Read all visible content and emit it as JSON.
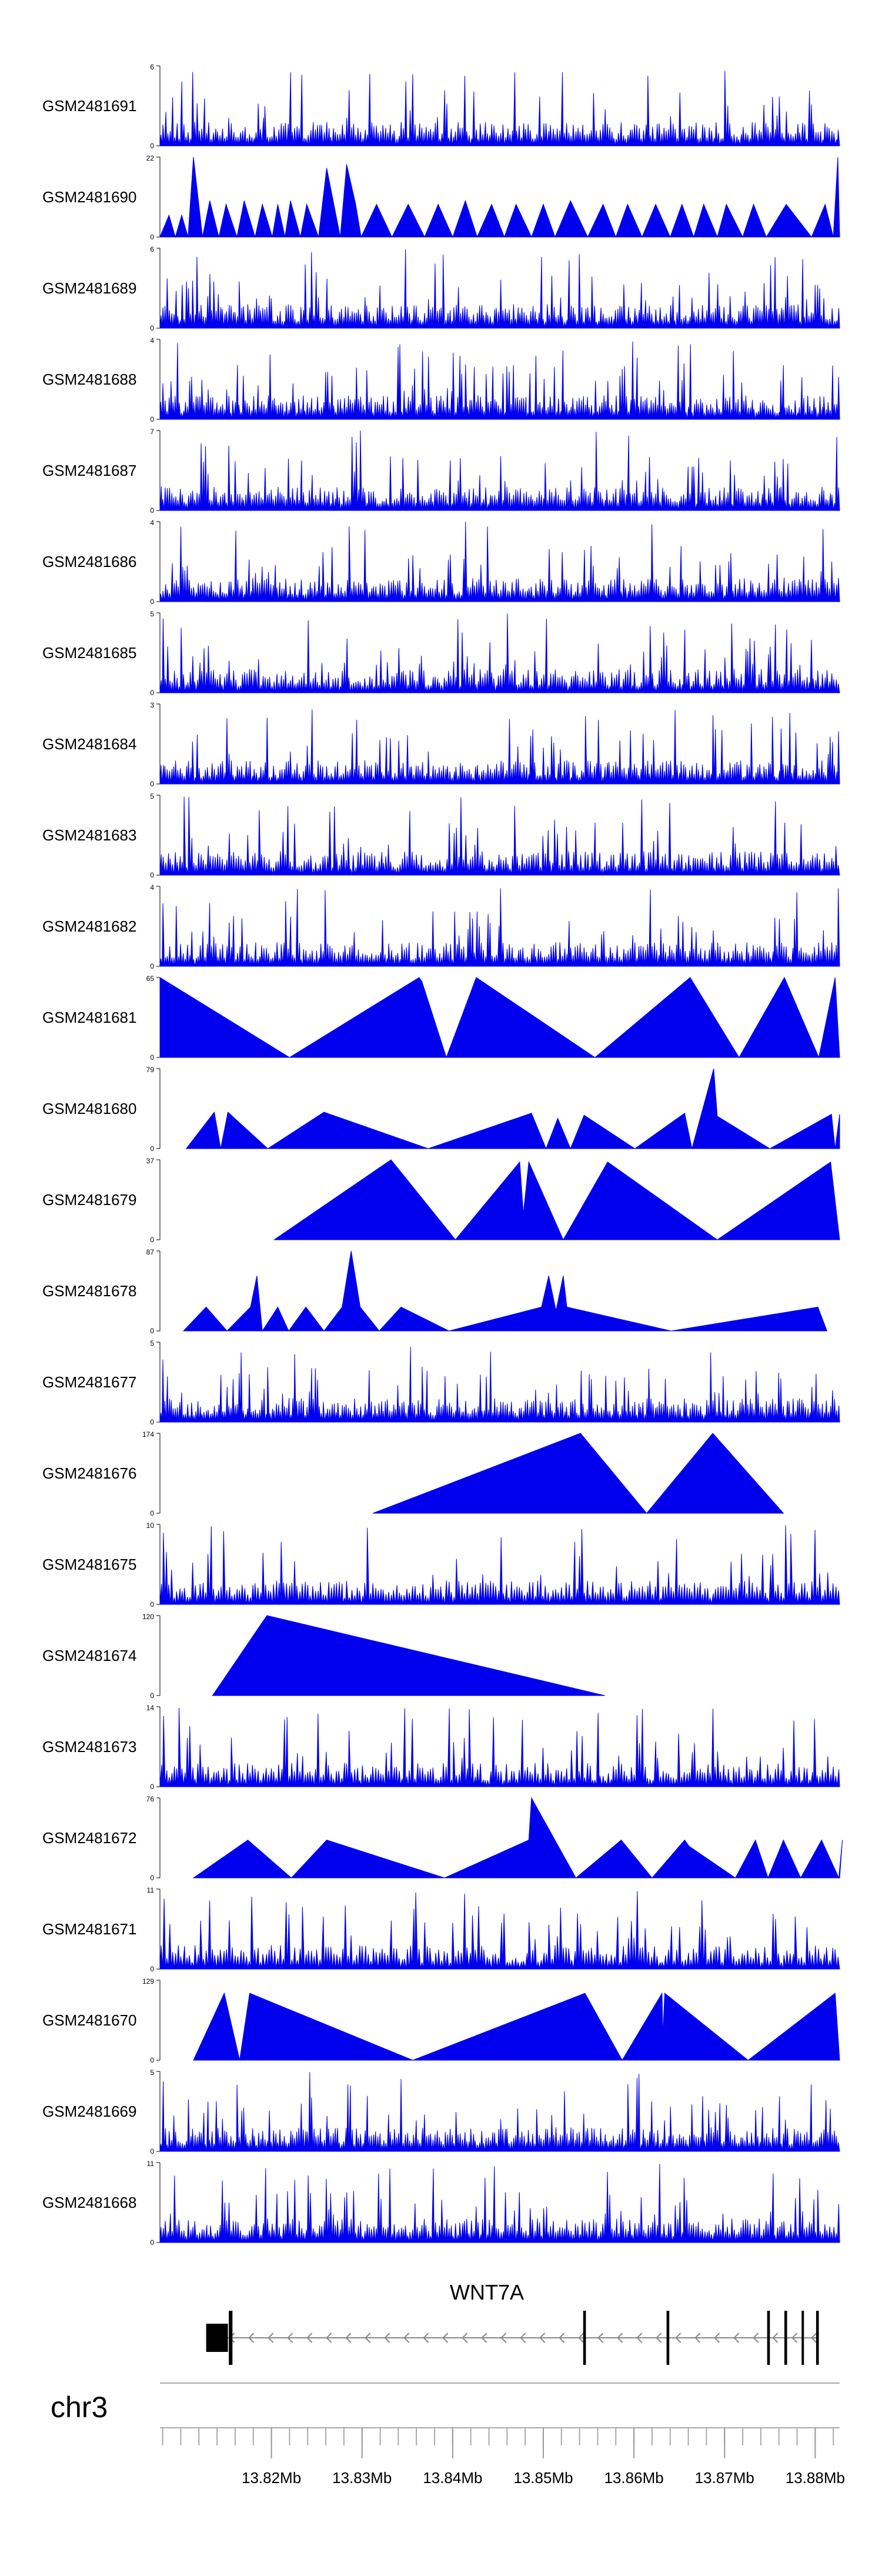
{
  "chart_data": {
    "type": "area",
    "title": "",
    "chromosome": "chr3",
    "genome_range_mb": [
      13.8077,
      13.8827
    ],
    "track_color": "#0000ee",
    "x_axis_ticks": [
      "13.82Mb",
      "13.83Mb",
      "13.84Mb",
      "13.85Mb",
      "13.86Mb",
      "13.87Mb",
      "13.88Mb"
    ],
    "x_axis_tick_values_mb": [
      13.82,
      13.83,
      13.84,
      13.85,
      13.86,
      13.87,
      13.88
    ],
    "gene": {
      "name": "WNT7A",
      "strand": "-",
      "start_mb": 13.8128,
      "end_mb": 13.8804,
      "exons_mb": [
        [
          13.8128,
          13.8152
        ],
        [
          13.8153,
          13.8157
        ],
        [
          13.8544,
          13.8547
        ],
        [
          13.8636,
          13.8639
        ],
        [
          13.8747,
          13.875
        ],
        [
          13.8766,
          13.8769
        ],
        [
          13.8785,
          13.8787
        ],
        [
          13.8801,
          13.8804
        ]
      ]
    },
    "tracks": [
      {
        "name": "GSM2481691",
        "ymax": 6,
        "pattern": "dense",
        "seed": 11,
        "density": 300
      },
      {
        "name": "GSM2481690",
        "ymax": 22,
        "pattern": "peaks",
        "points": [
          [
            13.8077,
            0
          ],
          [
            13.8087,
            6
          ],
          [
            13.8094,
            0
          ],
          [
            13.8101,
            6
          ],
          [
            13.8108,
            0
          ],
          [
            13.8114,
            22
          ],
          [
            13.8124,
            0
          ],
          [
            13.8132,
            10
          ],
          [
            13.8142,
            0
          ],
          [
            13.815,
            9
          ],
          [
            13.8162,
            0
          ],
          [
            13.817,
            10
          ],
          [
            13.8182,
            0
          ],
          [
            13.819,
            9
          ],
          [
            13.8201,
            0
          ],
          [
            13.8207,
            9
          ],
          [
            13.8215,
            0
          ],
          [
            13.8221,
            10
          ],
          [
            13.8232,
            0
          ],
          [
            13.8239,
            9
          ],
          [
            13.8252,
            0
          ],
          [
            13.8261,
            19
          ],
          [
            13.8276,
            0
          ],
          [
            13.8283,
            20
          ],
          [
            13.8293,
            9
          ],
          [
            13.8299,
            0
          ],
          [
            13.8316,
            9
          ],
          [
            13.8333,
            0
          ],
          [
            13.8351,
            9
          ],
          [
            13.8369,
            0
          ],
          [
            13.8384,
            9
          ],
          [
            13.84,
            0
          ],
          [
            13.8414,
            10
          ],
          [
            13.8427,
            0
          ],
          [
            13.8443,
            9
          ],
          [
            13.8457,
            0
          ],
          [
            13.847,
            9
          ],
          [
            13.8487,
            0
          ],
          [
            13.85,
            9
          ],
          [
            13.8513,
            0
          ],
          [
            13.853,
            10
          ],
          [
            13.8549,
            0
          ],
          [
            13.8566,
            9
          ],
          [
            13.858,
            0
          ],
          [
            13.8593,
            9
          ],
          [
            13.8609,
            0
          ],
          [
            13.8624,
            9
          ],
          [
            13.864,
            0
          ],
          [
            13.8653,
            9
          ],
          [
            13.8666,
            0
          ],
          [
            13.8677,
            9
          ],
          [
            13.8692,
            0
          ],
          [
            13.8702,
            9
          ],
          [
            13.872,
            0
          ],
          [
            13.8732,
            9
          ],
          [
            13.8746,
            0
          ],
          [
            13.8768,
            9
          ],
          [
            13.8796,
            0
          ],
          [
            13.8811,
            9
          ],
          [
            13.882,
            0
          ],
          [
            13.8825,
            22
          ],
          [
            13.8827,
            0
          ]
        ]
      },
      {
        "name": "GSM2481689",
        "ymax": 6,
        "pattern": "dense",
        "seed": 23,
        "density": 320
      },
      {
        "name": "GSM2481688",
        "ymax": 4,
        "pattern": "dense",
        "seed": 37,
        "density": 330
      },
      {
        "name": "GSM2481687",
        "ymax": 7,
        "pattern": "dense",
        "seed": 41,
        "density": 320
      },
      {
        "name": "GSM2481686",
        "ymax": 4,
        "pattern": "dense",
        "seed": 53,
        "density": 310
      },
      {
        "name": "GSM2481685",
        "ymax": 5,
        "pattern": "dense",
        "seed": 67,
        "density": 300
      },
      {
        "name": "GSM2481684",
        "ymax": 3,
        "pattern": "dense",
        "seed": 71,
        "density": 320
      },
      {
        "name": "GSM2481683",
        "ymax": 5,
        "pattern": "dense",
        "seed": 83,
        "density": 290
      },
      {
        "name": "GSM2481682",
        "ymax": 4,
        "pattern": "dense",
        "seed": 97,
        "density": 310
      },
      {
        "name": "GSM2481681",
        "ymax": 65,
        "pattern": "peaks",
        "points": [
          [
            13.8077,
            65
          ],
          [
            13.822,
            0
          ],
          [
            13.8363,
            65
          ],
          [
            13.8366,
            62
          ],
          [
            13.8393,
            0
          ],
          [
            13.8426,
            65
          ],
          [
            13.8557,
            0
          ],
          [
            13.8662,
            65
          ],
          [
            13.8716,
            0
          ],
          [
            13.8766,
            65
          ],
          [
            13.8804,
            0
          ],
          [
            13.8822,
            65
          ],
          [
            13.8827,
            0
          ]
        ]
      },
      {
        "name": "GSM2481680",
        "ymax": 79,
        "pattern": "peaks",
        "points": [
          [
            13.8106,
            0
          ],
          [
            13.8137,
            36
          ],
          [
            13.8144,
            0
          ],
          [
            13.8152,
            36
          ],
          [
            13.8196,
            0
          ],
          [
            13.8258,
            36
          ],
          [
            13.8373,
            0
          ],
          [
            13.8487,
            35
          ],
          [
            13.8503,
            0
          ],
          [
            13.8516,
            30
          ],
          [
            13.853,
            0
          ],
          [
            13.8545,
            33
          ],
          [
            13.8601,
            0
          ],
          [
            13.8656,
            35
          ],
          [
            13.8664,
            0
          ],
          [
            13.8688,
            79
          ],
          [
            13.8692,
            32
          ],
          [
            13.875,
            0
          ],
          [
            13.8818,
            34
          ],
          [
            13.8822,
            0
          ],
          [
            13.8827,
            34
          ],
          [
            13.8827,
            0
          ]
        ]
      },
      {
        "name": "GSM2481679",
        "ymax": 37,
        "pattern": "peaks",
        "points": [
          [
            13.8203,
            0
          ],
          [
            13.8332,
            37
          ],
          [
            13.8403,
            0
          ],
          [
            13.8474,
            36
          ],
          [
            13.8478,
            12
          ],
          [
            13.8484,
            36
          ],
          [
            13.8522,
            0
          ],
          [
            13.8571,
            36
          ],
          [
            13.8692,
            0
          ],
          [
            13.8817,
            36
          ],
          [
            13.8827,
            0
          ]
        ]
      },
      {
        "name": "GSM2481678",
        "ymax": 87,
        "pattern": "peaks",
        "points": [
          [
            13.8103,
            0
          ],
          [
            13.8128,
            26
          ],
          [
            13.8151,
            0
          ],
          [
            13.8177,
            26
          ],
          [
            13.8184,
            60
          ],
          [
            13.819,
            0
          ],
          [
            13.8207,
            26
          ],
          [
            13.8219,
            0
          ],
          [
            13.8238,
            26
          ],
          [
            13.8258,
            0
          ],
          [
            13.8278,
            26
          ],
          [
            13.8288,
            87
          ],
          [
            13.8298,
            26
          ],
          [
            13.8319,
            0
          ],
          [
            13.8343,
            26
          ],
          [
            13.8396,
            0
          ],
          [
            13.8498,
            26
          ],
          [
            13.8506,
            60
          ],
          [
            13.8514,
            22
          ],
          [
            13.8522,
            60
          ],
          [
            13.8526,
            26
          ],
          [
            13.8641,
            0
          ],
          [
            13.8803,
            26
          ],
          [
            13.8813,
            0
          ]
        ]
      },
      {
        "name": "GSM2481677",
        "ymax": 5,
        "pattern": "dense",
        "seed": 109,
        "density": 330
      },
      {
        "name": "GSM2481676",
        "ymax": 174,
        "pattern": "peaks",
        "points": [
          [
            13.8312,
            0
          ],
          [
            13.8541,
            174
          ],
          [
            13.8614,
            0
          ],
          [
            13.8687,
            174
          ],
          [
            13.8765,
            0
          ]
        ]
      },
      {
        "name": "GSM2481675",
        "ymax": 10,
        "pattern": "dense",
        "seed": 127,
        "density": 260
      },
      {
        "name": "GSM2481674",
        "ymax": 120,
        "pattern": "peaks",
        "points": [
          [
            13.8135,
            0
          ],
          [
            13.8195,
            120
          ],
          [
            13.8568,
            0
          ]
        ]
      },
      {
        "name": "GSM2481673",
        "ymax": 14,
        "pattern": "dense",
        "seed": 139,
        "density": 260
      },
      {
        "name": "GSM2481672",
        "ymax": 76,
        "pattern": "peaks",
        "points": [
          [
            13.8114,
            0
          ],
          [
            13.8174,
            36
          ],
          [
            13.8222,
            0
          ],
          [
            13.8261,
            36
          ],
          [
            13.8391,
            0
          ],
          [
            13.8484,
            36
          ],
          [
            13.8487,
            76
          ],
          [
            13.8536,
            0
          ],
          [
            13.8586,
            36
          ],
          [
            13.862,
            0
          ],
          [
            13.8656,
            36
          ],
          [
            13.8661,
            30
          ],
          [
            13.8712,
            0
          ],
          [
            13.8734,
            36
          ],
          [
            13.8748,
            0
          ],
          [
            13.8765,
            36
          ],
          [
            13.8784,
            0
          ],
          [
            13.8807,
            36
          ],
          [
            13.8826,
            0
          ],
          [
            13.883,
            36
          ],
          [
            13.8827,
            0
          ]
        ]
      },
      {
        "name": "GSM2481671",
        "ymax": 11,
        "pattern": "dense",
        "seed": 151,
        "density": 240
      },
      {
        "name": "GSM2481670",
        "ymax": 129,
        "pattern": "peaks",
        "points": [
          [
            13.8114,
            0
          ],
          [
            13.8148,
            108
          ],
          [
            13.8165,
            0
          ],
          [
            13.8176,
            108
          ],
          [
            13.8356,
            0
          ],
          [
            13.8546,
            108
          ],
          [
            13.8587,
            0
          ],
          [
            13.8631,
            108
          ],
          [
            13.8632,
            41
          ],
          [
            13.8634,
            108
          ],
          [
            13.8726,
            0
          ],
          [
            13.8822,
            108
          ],
          [
            13.8827,
            0
          ]
        ]
      },
      {
        "name": "GSM2481669",
        "ymax": 5,
        "pattern": "dense",
        "seed": 163,
        "density": 320
      },
      {
        "name": "GSM2481668",
        "ymax": 11,
        "pattern": "dense",
        "seed": 179,
        "density": 300
      }
    ]
  }
}
